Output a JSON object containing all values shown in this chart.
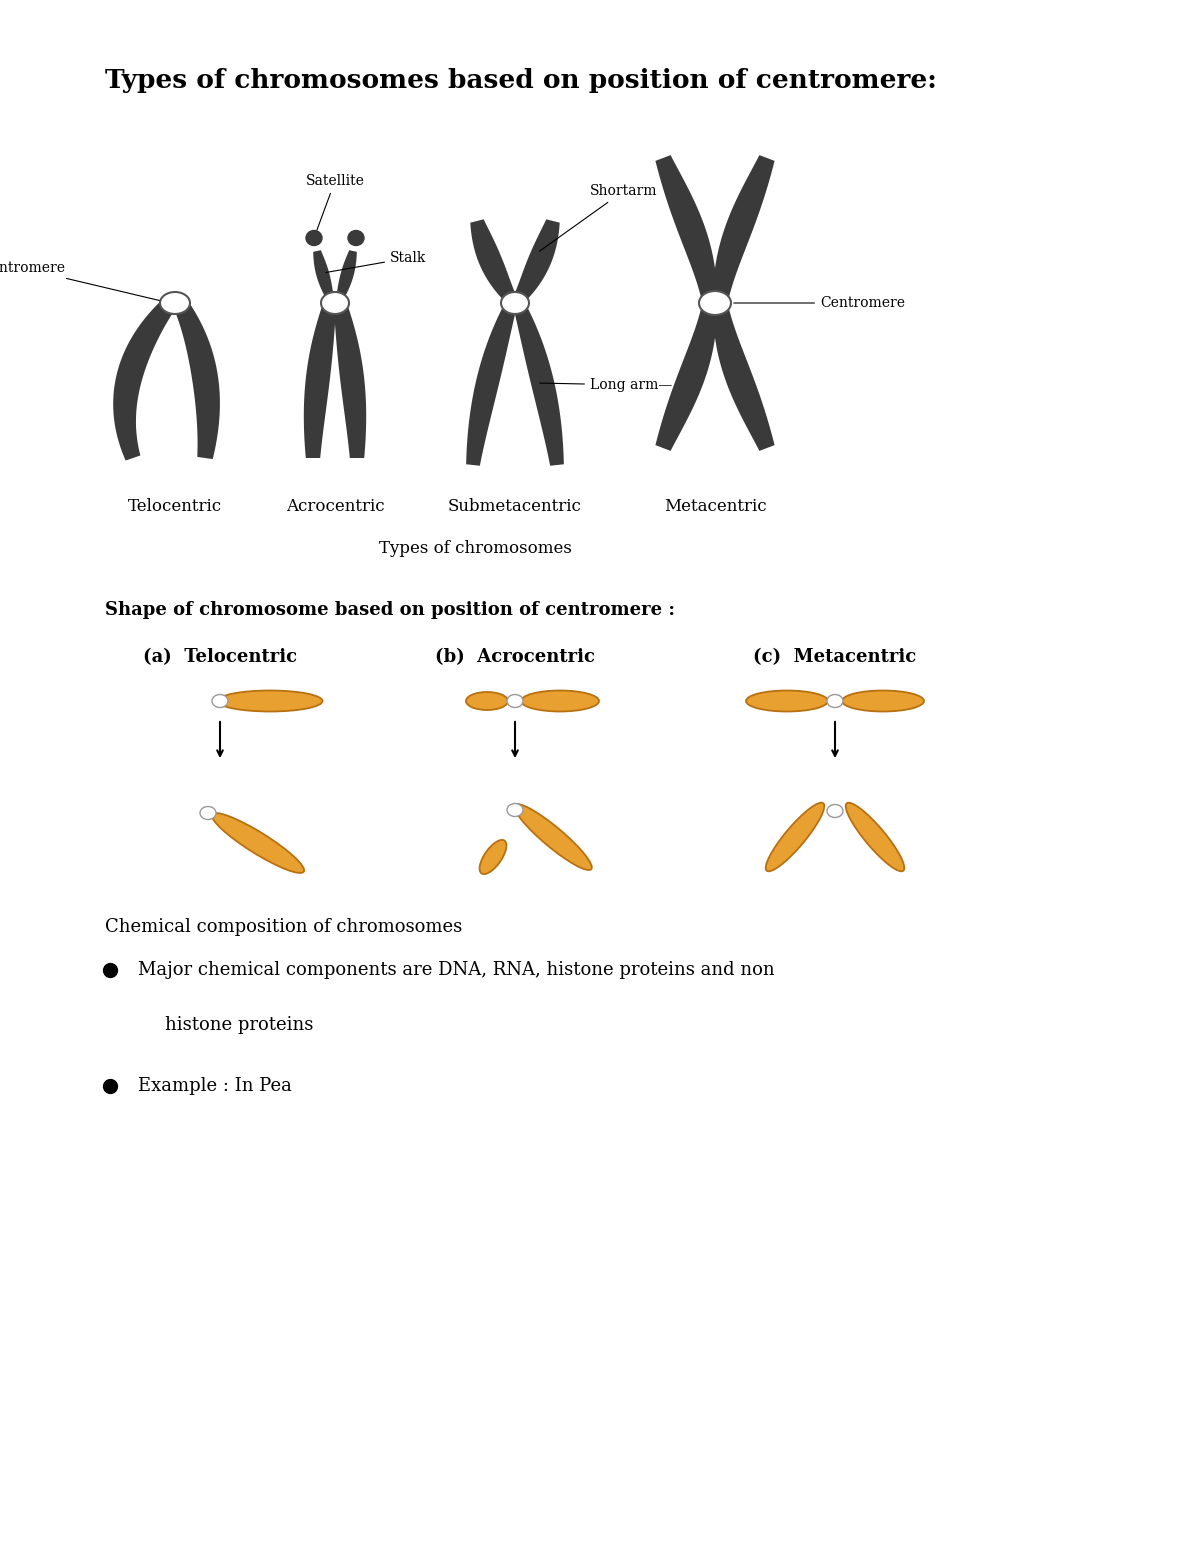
{
  "title": "Types of chromosomes based on position of centromere:",
  "title_fontsize": 19,
  "bg_color": "#ffffff",
  "section1_subtitle": "Shape of chromosome based on position of centromere :",
  "section2_subtitle": "Chemical composition of chromosomes",
  "chromosome_types_caption": "Types of chromosomes",
  "chromosome_labels": [
    "Telocentric",
    "Acrocentric",
    "Submetacentric",
    "Metacentric"
  ],
  "shape_labels": [
    "(a)  Telocentric",
    "(b)  Acrocentric",
    "(c)  Metacentric"
  ],
  "dark_color": "#3a3a3a",
  "orange_color": "#E8A030",
  "centromere_edge": "#888888",
  "text_color": "#000000",
  "ann_fontsize": 10,
  "label_fontsize": 12,
  "section_fontsize": 13,
  "bullet_fontsize": 13
}
